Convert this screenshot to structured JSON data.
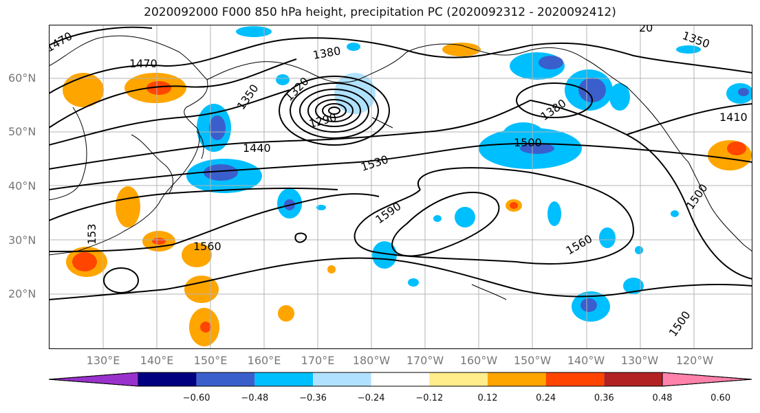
{
  "title": "2020092000 F000 850 hPa height, precipitation PC (2020092312 - 2020092412)",
  "lat_labels": [
    "60°N",
    "50°N",
    "40°N",
    "30°N",
    "20°N"
  ],
  "lon_labels": [
    "130°E",
    "140°E",
    "150°E",
    "160°E",
    "170°E",
    "180°W",
    "170°W",
    "160°W",
    "150°W",
    "140°W",
    "130°W",
    "120°W"
  ],
  "contour_labels": [
    "1470",
    "1470",
    "1380",
    "1350",
    "1320",
    "1440",
    "1290",
    "1530",
    "1500",
    "1380",
    "1410",
    "1350",
    "1590",
    "1560",
    "1560",
    "1500",
    "1500",
    "153",
    "20"
  ],
  "colorbar": {
    "ticks": [
      "−0.60",
      "−0.48",
      "−0.36",
      "−0.24",
      "−0.12",
      "0.12",
      "0.24",
      "0.36",
      "0.48",
      "0.60"
    ],
    "colors": [
      "#9932CC",
      "#000080",
      "#3A5FCD",
      "#00BFFF",
      "#B0E2FF",
      "#FFFFFF",
      "#FFEC8B",
      "#FFA500",
      "#FF4500",
      "#B22222",
      "#FF82AB"
    ]
  }
}
